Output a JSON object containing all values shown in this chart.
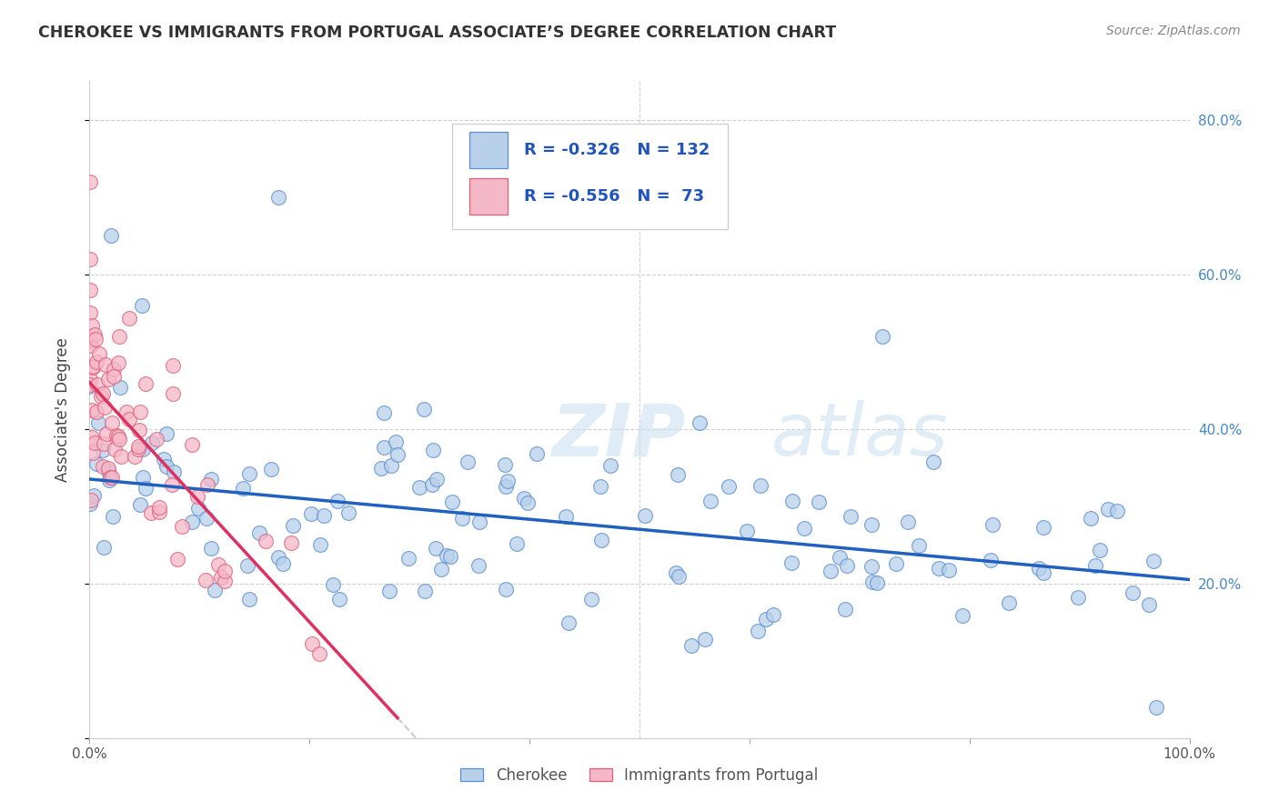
{
  "title": "CHEROKEE VS IMMIGRANTS FROM PORTUGAL ASSOCIATE’S DEGREE CORRELATION CHART",
  "source": "Source: ZipAtlas.com",
  "ylabel": "Associate's Degree",
  "xlim": [
    0.0,
    1.0
  ],
  "ylim": [
    0.0,
    0.85
  ],
  "cherokee_R": -0.326,
  "cherokee_N": 132,
  "portugal_R": -0.556,
  "portugal_N": 73,
  "cherokee_color": "#b8d0ea",
  "cherokee_edge_color": "#5b8fd4",
  "portugal_color": "#f5b8c8",
  "portugal_edge_color": "#e0607a",
  "cherokee_line_color": "#2060c0",
  "portugal_line_color": "#e03060",
  "background_color": "#ffffff",
  "grid_color": "#d0d0d0",
  "legend_text_color": "#2255bb",
  "right_tick_color": "#4488cc",
  "title_color": "#333333",
  "source_color": "#888888",
  "watermark_color": "#c8ddf0",
  "cherokee_line_intercept": 0.335,
  "cherokee_line_slope": -0.13,
  "portugal_line_intercept": 0.46,
  "portugal_line_slope": -1.55
}
